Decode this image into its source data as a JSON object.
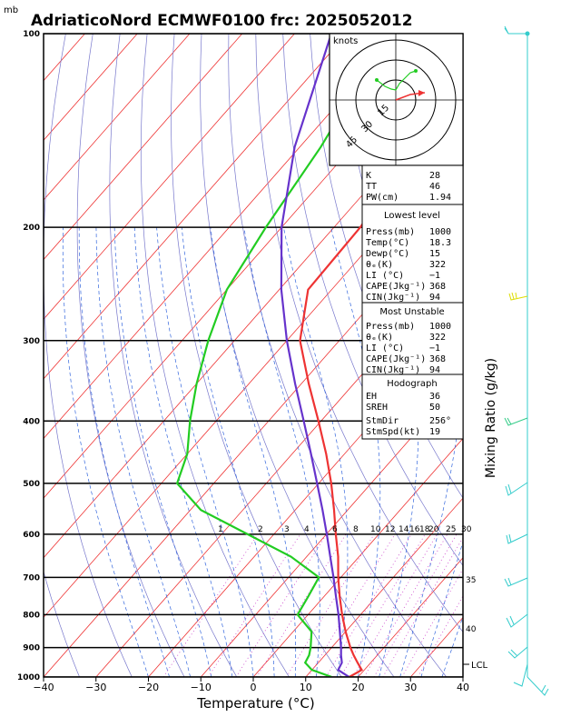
{
  "title": "AdriaticoNord ECMWF0100 frc: 2025052012",
  "pressure_unit": "mb",
  "xlabel": "Temperature (°C)",
  "ylabel_right": "Mixing Ratio (g/kg)",
  "hodograph": {
    "unit": "knots",
    "rings": [
      "15",
      "30",
      "45"
    ]
  },
  "lcl_label": "LCL",
  "colors": {
    "temperature": "#ee3333",
    "dewpoint": "#22cc22",
    "parcel": "#6633cc",
    "isotherms": "#ee3333",
    "dry_adiabats": "#7777cc",
    "moist_adiabats": "#3366dd",
    "mixing_ratio": "#cc44cc",
    "wind_barbs": "#33cccc"
  },
  "indices": {
    "k": {
      "label": "K",
      "value": "28"
    },
    "tt": {
      "label": "TT",
      "value": "46"
    },
    "pw": {
      "label": "PW(cm)",
      "value": "1.94"
    }
  },
  "lowest_level": {
    "header": "Lowest level",
    "press": {
      "label": "Press(mb)",
      "value": "1000"
    },
    "temp": {
      "label": "Temp(°C)",
      "value": "18.3"
    },
    "dewp": {
      "label": "Dewp(°C)",
      "value": "15"
    },
    "theta": {
      "label": "θₑ(K)",
      "value": "322"
    },
    "li": {
      "label": "LI (°C)",
      "value": "−1"
    },
    "cape": {
      "label": "CAPE(Jkg⁻¹)",
      "value": "368"
    },
    "cin": {
      "label": "CIN(Jkg⁻¹)",
      "value": "94"
    }
  },
  "most_unstable": {
    "header": "Most Unstable",
    "press": {
      "label": "Press(mb)",
      "value": "1000"
    },
    "theta": {
      "label": "θₑ(K)",
      "value": "322"
    },
    "li": {
      "label": "LI (°C)",
      "value": "−1"
    },
    "cape": {
      "label": "CAPE(Jkg⁻¹)",
      "value": "368"
    },
    "cin": {
      "label": "CIN(Jkg⁻¹)",
      "value": "94"
    }
  },
  "hodo_stats": {
    "header": "Hodograph",
    "eh": {
      "label": "EH",
      "value": "36"
    },
    "sreh": {
      "label": "SREH",
      "value": "50"
    },
    "stmdir": {
      "label": "StmDir",
      "value": "256°"
    },
    "stmspd": {
      "label": "StmSpd(kt)",
      "value": "19"
    }
  },
  "chart_data": {
    "type": "line",
    "diagram": "skew-T log-P",
    "xlabel": "Temperature (°C)",
    "x_ticks": [
      -40,
      -30,
      -20,
      -10,
      0,
      10,
      20,
      30,
      40
    ],
    "y_ticks_mb": [
      100,
      200,
      300,
      400,
      500,
      600,
      700,
      800,
      900,
      1000
    ],
    "xlim_at_1000mb": [
      -40,
      40
    ],
    "ylim_mb": [
      1000,
      100
    ],
    "mixing_ratio_labels": [
      "1",
      "2",
      "3",
      "4",
      "6",
      "8",
      "10",
      "12",
      "14",
      "16",
      "18",
      "20",
      "25",
      "30"
    ],
    "theta_e_labels": [
      "35",
      "40"
    ],
    "series": [
      {
        "role": "temperature",
        "pressure": [
          1000,
          975,
          950,
          925,
          900,
          850,
          800,
          750,
          700,
          650,
          600,
          550,
          500,
          450,
          400,
          350,
          300,
          250,
          200,
          150,
          100
        ],
        "temp": [
          18.3,
          19.5,
          17.5,
          15.5,
          13.6,
          10.0,
          6.5,
          3.0,
          -0.5,
          -4.0,
          -8.2,
          -12.6,
          -17.6,
          -23.5,
          -30.5,
          -38.6,
          -47.5,
          -54.5,
          -55.0,
          -58.0,
          -64.0
        ]
      },
      {
        "role": "dewpoint",
        "pressure": [
          1000,
          975,
          950,
          925,
          900,
          850,
          800,
          750,
          700,
          650,
          600,
          550,
          500,
          450,
          400,
          350,
          300,
          250,
          200,
          150,
          100
        ],
        "temp": [
          15.0,
          10.0,
          7.5,
          7.0,
          6.0,
          3.5,
          -2.0,
          -3.0,
          -4.2,
          -13.0,
          -25.0,
          -38.0,
          -47.0,
          -50.0,
          -55.0,
          -60.0,
          -65.0,
          -70.0,
          -73.0,
          -76.0,
          -82.0
        ]
      },
      {
        "role": "parcel",
        "pressure": [
          1000,
          975,
          950,
          925,
          900,
          850,
          800,
          750,
          700,
          650,
          600,
          550,
          500,
          450,
          400,
          350,
          300,
          250,
          200,
          150,
          100
        ],
        "temp": [
          18.3,
          15.0,
          14.5,
          13.1,
          11.8,
          8.9,
          5.8,
          2.3,
          -1.4,
          -5.5,
          -9.9,
          -14.8,
          -20.3,
          -26.4,
          -33.3,
          -41.2,
          -50.0,
          -59.6,
          -70.0,
          -81.0,
          -93.0
        ]
      }
    ],
    "wind_profile_visible": true
  }
}
